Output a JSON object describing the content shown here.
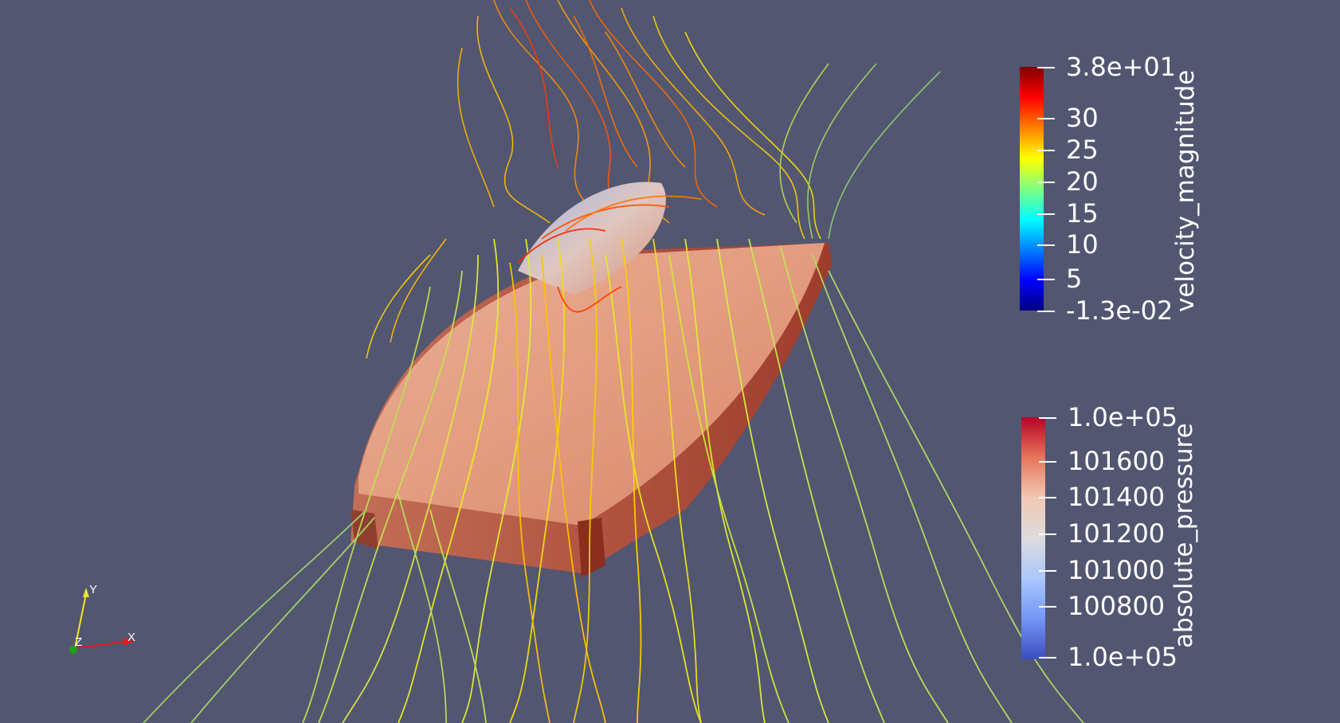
{
  "view": {
    "background": "#525671"
  },
  "colorbars": {
    "velocity": {
      "title": "velocity_magnitude",
      "labels": [
        "3.8e+01",
        "30",
        "25",
        "20",
        "15",
        "10",
        "5",
        "-1.3e-02"
      ],
      "gradient": [
        "#800000",
        "#ff0000",
        "#ff8000",
        "#ffff00",
        "#80ff80",
        "#00ffff",
        "#0080ff",
        "#0000ff",
        "#000080"
      ]
    },
    "pressure": {
      "title": "absolute_pressure",
      "labels": [
        "1.0e+05",
        "101600",
        "101400",
        "101200",
        "101000",
        "100800",
        "1.0e+05"
      ],
      "gradient": [
        "#b40426",
        "#e7755b",
        "#f2c9b4",
        "#dddcdc",
        "#aac7fd",
        "#7396f5",
        "#3b4cc0"
      ]
    }
  },
  "orientation_axes": {
    "x": "X",
    "y": "Y",
    "z": "Z",
    "x_color": "#e31a1c",
    "y_color": "#f2e422",
    "z_color": "#1aa31a"
  }
}
